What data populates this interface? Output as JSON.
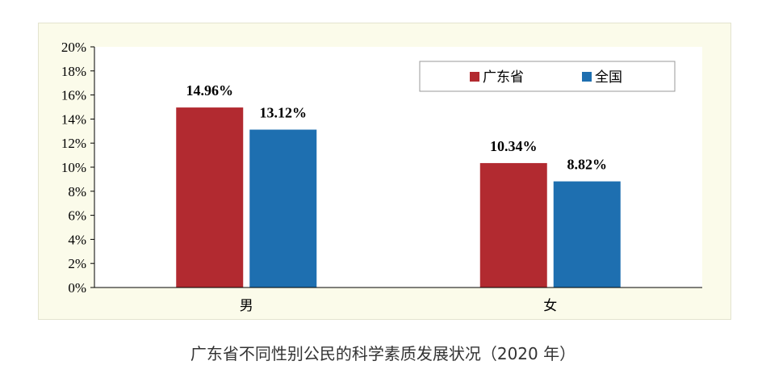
{
  "caption": "广东省不同性别公民的科学素质发展状况（2020 年）",
  "colors": {
    "guangdong": "#b22a30",
    "national": "#1e6fb0",
    "panel_bg": "#fbfbea",
    "plot_bg": "#ffffff"
  },
  "chart_data": {
    "type": "bar",
    "title": "",
    "xlabel": "",
    "ylabel": "",
    "categories": [
      "男",
      "女"
    ],
    "series": [
      {
        "name": "广东省",
        "values": [
          14.96,
          10.34
        ],
        "labels": [
          "14.96%",
          "10.34%"
        ],
        "color": "#b22a30"
      },
      {
        "name": "全国",
        "values": [
          13.12,
          8.82
        ],
        "labels": [
          "13.12%",
          "8.82%"
        ],
        "color": "#1e6fb0"
      }
    ],
    "ylim": [
      0,
      20
    ],
    "yticks": [
      0,
      2,
      4,
      6,
      8,
      10,
      12,
      14,
      16,
      18,
      20
    ],
    "ytick_labels": [
      "0%",
      "2%",
      "4%",
      "6%",
      "8%",
      "10%",
      "12%",
      "14%",
      "16%",
      "18%",
      "20%"
    ],
    "grid": false,
    "legend_position": "top-right"
  }
}
